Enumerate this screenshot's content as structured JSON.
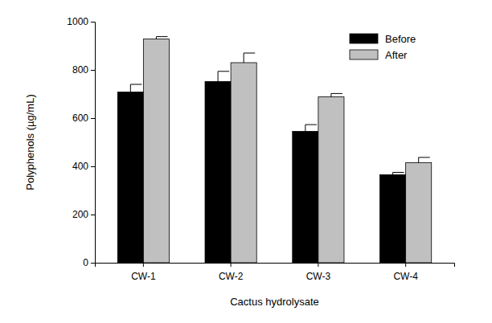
{
  "chart_data": {
    "type": "bar",
    "x_label": "Cactus hydrolysate",
    "y_label": "Polyphenols (µg/mL)",
    "categories": [
      "CW-1",
      "CW-2",
      "CW-3",
      "CW-4"
    ],
    "series": [
      {
        "name": "Before",
        "color": "#000000",
        "values": [
          708,
          752,
          545,
          365
        ],
        "errors": [
          32,
          42,
          28,
          10
        ]
      },
      {
        "name": "After",
        "color": "#c0c0c0",
        "values": [
          928,
          830,
          688,
          415
        ],
        "errors": [
          10,
          40,
          14,
          22
        ]
      }
    ],
    "ylim": [
      0,
      1000
    ],
    "yticks": [
      0,
      200,
      400,
      600,
      800,
      1000
    ],
    "legend": "upper right"
  }
}
